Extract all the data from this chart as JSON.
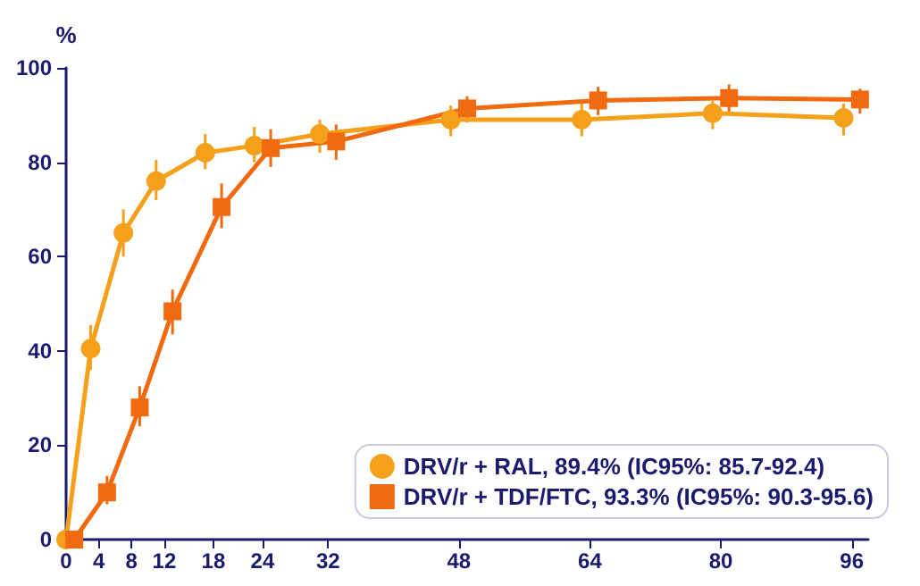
{
  "chart_data": {
    "type": "line",
    "ylabel": "%",
    "xlim": [
      0,
      98
    ],
    "xticks": [
      0,
      4,
      8,
      12,
      18,
      24,
      32,
      48,
      64,
      80,
      96
    ],
    "ylim": [
      0,
      100
    ],
    "yticks": [
      0,
      20,
      40,
      60,
      80,
      100
    ],
    "grid": false,
    "legend": "bottom right",
    "series": [
      {
        "name": "DRV/r + RAL, 89.4% (IC95%: 85.7-92.4)",
        "color": "#f5a01a",
        "marker": "circle",
        "x": [
          0,
          3,
          7,
          11,
          17,
          23,
          31,
          47,
          63,
          79,
          95
        ],
        "values": [
          0,
          40.5,
          65,
          76,
          82,
          83.5,
          86,
          89,
          89,
          90.4,
          89.4
        ],
        "errors": [
          null,
          [
            36,
            45.5
          ],
          [
            60,
            70
          ],
          [
            72,
            80.5
          ],
          [
            78.5,
            86
          ],
          [
            80,
            87.5
          ],
          [
            82,
            89
          ],
          [
            85.5,
            92
          ],
          [
            85.5,
            92.5
          ],
          [
            87,
            93
          ],
          [
            85.7,
            92.4
          ]
        ]
      },
      {
        "name": "DRV/r + TDF/FTC, 93.3% (IC95%: 90.3-95.6)",
        "color": "#f26a10",
        "marker": "square",
        "x": [
          1,
          5,
          9,
          13,
          19,
          25,
          33,
          49,
          65,
          81,
          97
        ],
        "values": [
          0,
          10,
          28,
          48.4,
          70.5,
          83,
          84.4,
          91.4,
          93.1,
          93.6,
          93.3
        ],
        "errors": [
          null,
          [
            7.5,
            13.5
          ],
          [
            24,
            32.5
          ],
          [
            43.5,
            53
          ],
          [
            66,
            75.5
          ],
          [
            79,
            87
          ],
          [
            80.5,
            88
          ],
          [
            88.5,
            94
          ],
          [
            90,
            96
          ],
          [
            90.5,
            96.5
          ],
          [
            90.3,
            95.6
          ]
        ]
      }
    ]
  }
}
